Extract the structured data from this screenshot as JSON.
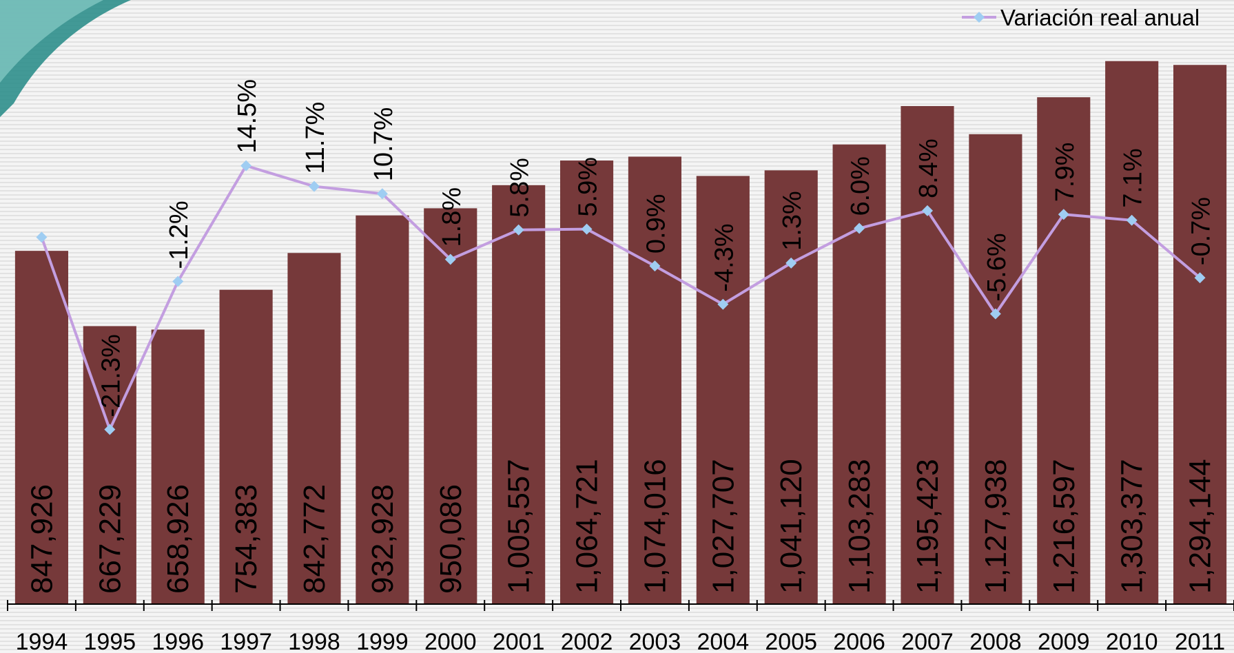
{
  "chart_data": {
    "type": "bar",
    "categories": [
      "1994",
      "1995",
      "1996",
      "1997",
      "1998",
      "1999",
      "2000",
      "2001",
      "2002",
      "2003",
      "2004",
      "2005",
      "2006",
      "2007",
      "2008",
      "2009",
      "2010",
      "2011"
    ],
    "ylim": [
      0,
      1450000
    ],
    "y2lim": [
      -45,
      37
    ],
    "legend": "top-right",
    "series": [
      {
        "type": "bar",
        "color": "#76393a",
        "values": [
          847926,
          667229,
          658926,
          754383,
          842772,
          932928,
          950086,
          1005557,
          1064721,
          1074016,
          1027707,
          1041120,
          1103283,
          1195423,
          1127938,
          1216597,
          1303377,
          1294144
        ],
        "value_labels": [
          "847,926",
          "667,229",
          "658,926",
          "754,383",
          "842,772",
          "932,928",
          "950,086",
          "1,005,557",
          "1,064,721",
          "1,074,016",
          "1,027,707",
          "1,041,120",
          "1,103,283",
          "1,195,423",
          "1,127,938",
          "1,216,597",
          "1,303,377",
          "1,294,144"
        ]
      },
      {
        "type": "line",
        "name": "Variación real anual",
        "color": "#c39ee0",
        "marker_color": "#9fcdf2",
        "axis": "y2",
        "values": [
          4.8,
          -21.3,
          -1.2,
          14.5,
          11.7,
          10.7,
          1.8,
          5.8,
          5.9,
          0.9,
          -4.3,
          1.3,
          6.0,
          8.4,
          -5.6,
          7.9,
          7.1,
          -0.7
        ],
        "value_labels": [
          null,
          "-21.3%",
          "-1.2%",
          "14.5%",
          "11.7%",
          "10.7%",
          "1.8%",
          "5.8%",
          "5.9%",
          "0.9%",
          "-4.3%",
          "1.3%",
          "6.0%",
          "8.4%",
          "-5.6%",
          "7.9%",
          "7.1%",
          "-0.7%"
        ]
      }
    ]
  }
}
